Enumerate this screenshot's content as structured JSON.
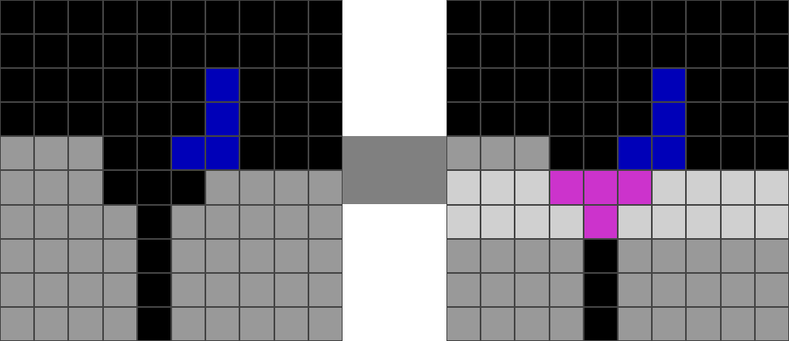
{
  "palette": {
    "0": "#000000",
    "1": "#0000b8",
    "5": "#999999",
    "6": "#cc33cc",
    "8": "#d0d0d0"
  },
  "connector_color": "#808080",
  "input_grid": [
    [
      0,
      0,
      0,
      0,
      0,
      0,
      0,
      0,
      0,
      0
    ],
    [
      0,
      0,
      0,
      0,
      0,
      0,
      0,
      0,
      0,
      0
    ],
    [
      0,
      0,
      0,
      0,
      0,
      0,
      1,
      0,
      0,
      0
    ],
    [
      0,
      0,
      0,
      0,
      0,
      0,
      1,
      0,
      0,
      0
    ],
    [
      5,
      5,
      5,
      0,
      0,
      1,
      1,
      0,
      0,
      0
    ],
    [
      5,
      5,
      5,
      0,
      0,
      0,
      5,
      5,
      5,
      5
    ],
    [
      5,
      5,
      5,
      5,
      0,
      5,
      5,
      5,
      5,
      5
    ],
    [
      5,
      5,
      5,
      5,
      0,
      5,
      5,
      5,
      5,
      5
    ],
    [
      5,
      5,
      5,
      5,
      0,
      5,
      5,
      5,
      5,
      5
    ],
    [
      5,
      5,
      5,
      5,
      0,
      5,
      5,
      5,
      5,
      5
    ]
  ],
  "output_grid": [
    [
      0,
      0,
      0,
      0,
      0,
      0,
      0,
      0,
      0,
      0
    ],
    [
      0,
      0,
      0,
      0,
      0,
      0,
      0,
      0,
      0,
      0
    ],
    [
      0,
      0,
      0,
      0,
      0,
      0,
      1,
      0,
      0,
      0
    ],
    [
      0,
      0,
      0,
      0,
      0,
      0,
      1,
      0,
      0,
      0
    ],
    [
      5,
      5,
      5,
      0,
      0,
      1,
      1,
      0,
      0,
      0
    ],
    [
      8,
      8,
      8,
      6,
      6,
      6,
      8,
      8,
      8,
      8
    ],
    [
      8,
      8,
      8,
      8,
      6,
      8,
      8,
      8,
      8,
      8
    ],
    [
      5,
      5,
      5,
      5,
      0,
      5,
      5,
      5,
      5,
      5
    ],
    [
      5,
      5,
      5,
      5,
      0,
      5,
      5,
      5,
      5,
      5
    ],
    [
      5,
      5,
      5,
      5,
      0,
      5,
      5,
      5,
      5,
      5
    ]
  ]
}
